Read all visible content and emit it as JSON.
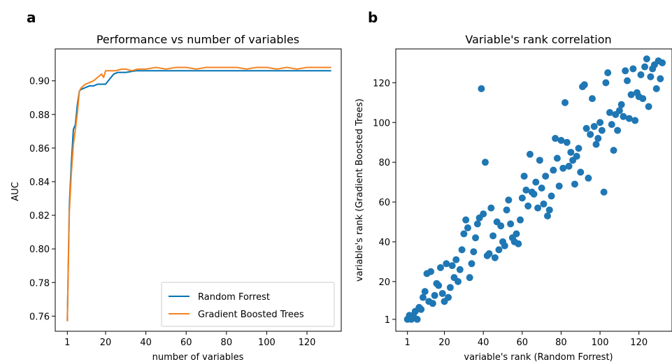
{
  "panels": {
    "a": "a",
    "b": "b"
  },
  "chart_data": [
    {
      "type": "line",
      "title": "Performance vs number of variables",
      "xlabel": "number of variables",
      "ylabel": "AUC",
      "xlim": [
        -5,
        137
      ],
      "ylim": [
        0.751,
        0.919
      ],
      "xticks": [
        1,
        20,
        40,
        60,
        80,
        100,
        120
      ],
      "yticks": [
        0.76,
        0.78,
        0.8,
        0.82,
        0.84,
        0.86,
        0.88,
        0.9
      ],
      "ytick_labels": [
        "0.76",
        "0.78",
        "0.80",
        "0.82",
        "0.84",
        "0.86",
        "0.88",
        "0.90"
      ],
      "legend_position": "bottom-right",
      "series": [
        {
          "name": "Random Forrest",
          "color": "#0173b2",
          "x": [
            1,
            2,
            3,
            4,
            5,
            6,
            7,
            8,
            10,
            12,
            14,
            16,
            18,
            20,
            22,
            24,
            26,
            30,
            35,
            40,
            50,
            60,
            70,
            80,
            90,
            100,
            110,
            120,
            125,
            132
          ],
          "y": [
            0.757,
            0.826,
            0.851,
            0.871,
            0.874,
            0.886,
            0.894,
            0.895,
            0.896,
            0.897,
            0.897,
            0.898,
            0.898,
            0.898,
            0.901,
            0.904,
            0.905,
            0.905,
            0.906,
            0.906,
            0.906,
            0.906,
            0.906,
            0.906,
            0.906,
            0.906,
            0.906,
            0.906,
            0.906,
            0.906
          ]
        },
        {
          "name": "Gradient Boosted Trees",
          "color": "#f5821f",
          "x": [
            1,
            2,
            3,
            4,
            5,
            6,
            7,
            8,
            9,
            10,
            12,
            14,
            16,
            17,
            18,
            19,
            20,
            22,
            25,
            28,
            30,
            33,
            36,
            40,
            45,
            50,
            55,
            60,
            65,
            70,
            75,
            80,
            85,
            90,
            95,
            100,
            105,
            110,
            115,
            120,
            125,
            130,
            132
          ],
          "y": [
            0.757,
            0.822,
            0.845,
            0.862,
            0.871,
            0.881,
            0.894,
            0.896,
            0.897,
            0.898,
            0.899,
            0.9,
            0.902,
            0.903,
            0.904,
            0.902,
            0.906,
            0.906,
            0.906,
            0.907,
            0.907,
            0.906,
            0.907,
            0.907,
            0.908,
            0.907,
            0.908,
            0.908,
            0.907,
            0.908,
            0.908,
            0.908,
            0.908,
            0.907,
            0.908,
            0.908,
            0.907,
            0.908,
            0.907,
            0.908,
            0.908,
            0.908,
            0.908
          ]
        }
      ]
    },
    {
      "type": "scatter",
      "title": "Variable's rank correlation",
      "xlabel": "variable's rank (Random Forrest)",
      "ylabel": "variable's rank (Gradient Boosted Trees)",
      "xlim": [
        -5,
        137
      ],
      "ylim": [
        -5,
        137
      ],
      "xticks": [
        1,
        20,
        40,
        60,
        80,
        100,
        120
      ],
      "yticks": [
        1,
        20,
        40,
        60,
        80,
        100,
        120
      ],
      "color": "#1f77b4",
      "points": [
        [
          1,
          1
        ],
        [
          2,
          3
        ],
        [
          3,
          1
        ],
        [
          4,
          3
        ],
        [
          5,
          5
        ],
        [
          6,
          1
        ],
        [
          7,
          7
        ],
        [
          8,
          6
        ],
        [
          9,
          12
        ],
        [
          10,
          15
        ],
        [
          11,
          24
        ],
        [
          12,
          10
        ],
        [
          13,
          25
        ],
        [
          14,
          9
        ],
        [
          15,
          13
        ],
        [
          16,
          19
        ],
        [
          17,
          18
        ],
        [
          18,
          27
        ],
        [
          19,
          14
        ],
        [
          20,
          10
        ],
        [
          21,
          29
        ],
        [
          22,
          12
        ],
        [
          23,
          17
        ],
        [
          24,
          28
        ],
        [
          25,
          22
        ],
        [
          26,
          31
        ],
        [
          27,
          20
        ],
        [
          28,
          26
        ],
        [
          29,
          36
        ],
        [
          30,
          44
        ],
        [
          31,
          51
        ],
        [
          32,
          47
        ],
        [
          33,
          22
        ],
        [
          34,
          29
        ],
        [
          35,
          35
        ],
        [
          36,
          42
        ],
        [
          37,
          49
        ],
        [
          38,
          52
        ],
        [
          39,
          117
        ],
        [
          40,
          54
        ],
        [
          41,
          80
        ],
        [
          42,
          33
        ],
        [
          43,
          34
        ],
        [
          44,
          57
        ],
        [
          45,
          43
        ],
        [
          46,
          32
        ],
        [
          47,
          50
        ],
        [
          48,
          36
        ],
        [
          49,
          48
        ],
        [
          50,
          40
        ],
        [
          51,
          38
        ],
        [
          52,
          56
        ],
        [
          53,
          61
        ],
        [
          54,
          49
        ],
        [
          55,
          42
        ],
        [
          56,
          40
        ],
        [
          57,
          44
        ],
        [
          58,
          39
        ],
        [
          59,
          51
        ],
        [
          60,
          62
        ],
        [
          61,
          73
        ],
        [
          62,
          66
        ],
        [
          63,
          58
        ],
        [
          64,
          84
        ],
        [
          65,
          65
        ],
        [
          66,
          64
        ],
        [
          67,
          70
        ],
        [
          68,
          57
        ],
        [
          69,
          81
        ],
        [
          70,
          67
        ],
        [
          71,
          59
        ],
        [
          72,
          73
        ],
        [
          73,
          53
        ],
        [
          74,
          56
        ],
        [
          75,
          63
        ],
        [
          76,
          76
        ],
        [
          77,
          92
        ],
        [
          78,
          82
        ],
        [
          79,
          68
        ],
        [
          80,
          91
        ],
        [
          81,
          77
        ],
        [
          82,
          110
        ],
        [
          83,
          90
        ],
        [
          84,
          78
        ],
        [
          85,
          85
        ],
        [
          86,
          81
        ],
        [
          87,
          69
        ],
        [
          88,
          83
        ],
        [
          89,
          87
        ],
        [
          90,
          75
        ],
        [
          91,
          118
        ],
        [
          92,
          119
        ],
        [
          93,
          97
        ],
        [
          94,
          72
        ],
        [
          95,
          94
        ],
        [
          96,
          112
        ],
        [
          97,
          98
        ],
        [
          98,
          89
        ],
        [
          99,
          92
        ],
        [
          100,
          100
        ],
        [
          101,
          96
        ],
        [
          102,
          65
        ],
        [
          103,
          120
        ],
        [
          104,
          125
        ],
        [
          105,
          105
        ],
        [
          106,
          99
        ],
        [
          107,
          86
        ],
        [
          108,
          104
        ],
        [
          109,
          96
        ],
        [
          110,
          106
        ],
        [
          111,
          109
        ],
        [
          112,
          103
        ],
        [
          113,
          126
        ],
        [
          114,
          121
        ],
        [
          115,
          102
        ],
        [
          116,
          114
        ],
        [
          117,
          127
        ],
        [
          118,
          101
        ],
        [
          119,
          115
        ],
        [
          120,
          113
        ],
        [
          121,
          124
        ],
        [
          122,
          112
        ],
        [
          123,
          128
        ],
        [
          124,
          132
        ],
        [
          125,
          108
        ],
        [
          126,
          123
        ],
        [
          127,
          127
        ],
        [
          128,
          129
        ],
        [
          129,
          117
        ],
        [
          130,
          131
        ],
        [
          131,
          122
        ],
        [
          132,
          130
        ]
      ]
    }
  ]
}
